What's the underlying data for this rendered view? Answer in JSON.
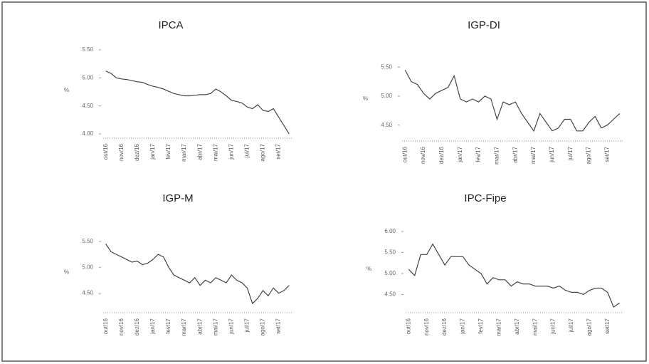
{
  "chart_data": [
    {
      "type": "line",
      "title": "IPCA",
      "y_label": "%",
      "categories": [
        "out/16",
        null,
        null,
        "nov/16",
        null,
        null,
        "dez/16",
        null,
        null,
        "jan/17",
        null,
        null,
        "fev/17",
        null,
        null,
        "mar/17",
        null,
        null,
        "abr/17",
        null,
        null,
        "mai/17",
        null,
        null,
        "jun/17",
        null,
        null,
        "jul/17",
        null,
        null,
        "ago/17",
        null,
        null,
        "set/17",
        null,
        null
      ],
      "series": [
        {
          "color": "#444444",
          "values": [
            5.12,
            5.08,
            5.0,
            4.98,
            4.97,
            4.95,
            4.93,
            4.92,
            4.88,
            4.85,
            4.83,
            4.8,
            4.76,
            4.72,
            4.7,
            4.68,
            4.68,
            4.69,
            4.7,
            4.7,
            4.72,
            4.8,
            4.75,
            4.68,
            4.6,
            4.58,
            4.55,
            4.48,
            4.45,
            4.52,
            4.42,
            4.4,
            4.45,
            4.3,
            4.15,
            4.0
          ]
        }
      ],
      "ylim": [
        3.95,
        5.6
      ],
      "yticks": [
        {
          "value": 5.5,
          "label": "5.50"
        },
        {
          "value": 5,
          "label": "5.00"
        },
        {
          "value": 4.5,
          "label": "4.50"
        },
        {
          "value": 4,
          "label": "4.00"
        }
      ]
    },
    {
      "type": "line",
      "title": "IGP-DI",
      "y_label": "%",
      "categories": [
        "out/16",
        null,
        null,
        "nov/16",
        null,
        null,
        "dez/16",
        null,
        null,
        "jan/17",
        null,
        null,
        "fev/17",
        null,
        null,
        "mar/17",
        null,
        null,
        "abr/17",
        null,
        null,
        "mai/17",
        null,
        null,
        "jun/17",
        null,
        null,
        "jul/17",
        null,
        null,
        "ago/17",
        null,
        null,
        "set/17",
        null,
        null
      ],
      "series": [
        {
          "color": "#444444",
          "values": [
            5.45,
            5.25,
            5.2,
            5.05,
            4.95,
            5.05,
            5.1,
            5.15,
            5.35,
            4.95,
            4.9,
            4.95,
            4.9,
            5.0,
            4.95,
            4.6,
            4.9,
            4.85,
            4.9,
            4.7,
            4.55,
            4.4,
            4.7,
            4.55,
            4.4,
            4.45,
            4.6,
            4.6,
            4.4,
            4.4,
            4.55,
            4.65,
            4.45,
            4.5,
            4.6,
            4.7
          ]
        }
      ],
      "ylim": [
        4.25,
        5.65
      ],
      "yticks": [
        {
          "value": 5.5,
          "label": "5.50"
        },
        {
          "value": 5,
          "label": "5.00"
        },
        {
          "value": 4.5,
          "label": "4.50"
        }
      ]
    },
    {
      "type": "line",
      "title": "IGP-M",
      "y_label": "%",
      "categories": [
        "out/16",
        null,
        null,
        "nov/16",
        null,
        null,
        "dez/16",
        null,
        null,
        "jan/17",
        null,
        null,
        "fev/17",
        null,
        null,
        "mar/17",
        null,
        null,
        "abr/17",
        null,
        null,
        "mai/17",
        null,
        null,
        "jun/17",
        null,
        null,
        "jul/17",
        null,
        null,
        "ago/17",
        null,
        null,
        "set/17",
        null,
        null
      ],
      "series": [
        {
          "color": "#444444",
          "values": [
            5.45,
            5.3,
            5.25,
            5.2,
            5.15,
            5.1,
            5.12,
            5.05,
            5.08,
            5.15,
            5.25,
            5.2,
            5.0,
            4.85,
            4.8,
            4.75,
            4.7,
            4.8,
            4.65,
            4.75,
            4.7,
            4.8,
            4.75,
            4.7,
            4.85,
            4.75,
            4.7,
            4.6,
            4.3,
            4.4,
            4.55,
            4.45,
            4.6,
            4.5,
            4.55,
            4.65
          ]
        }
      ],
      "ylim": [
        4.15,
        5.65
      ],
      "yticks": [
        {
          "value": 5.5,
          "label": "5.50"
        },
        {
          "value": 5,
          "label": "5.00"
        },
        {
          "value": 4.5,
          "label": "4.50"
        }
      ]
    },
    {
      "type": "line",
      "title": "IPC-Fipe",
      "y_label": "%",
      "categories": [
        "out/16",
        null,
        null,
        "nov/16",
        null,
        null,
        "dez/16",
        null,
        null,
        "jan/17",
        null,
        null,
        "fev/17",
        null,
        null,
        "mar/17",
        null,
        null,
        "abr/17",
        null,
        null,
        "mai/17",
        null,
        null,
        "jun/17",
        null,
        null,
        "jul/17",
        null,
        null,
        "ago/17",
        null,
        null,
        "set/17",
        null,
        null
      ],
      "series": [
        {
          "color": "#444444",
          "values": [
            5.1,
            4.95,
            5.45,
            5.45,
            5.7,
            5.45,
            5.2,
            5.4,
            5.4,
            5.4,
            5.2,
            5.1,
            5.0,
            4.75,
            4.9,
            4.85,
            4.85,
            4.7,
            4.8,
            4.75,
            4.75,
            4.7,
            4.7,
            4.7,
            4.65,
            4.7,
            4.6,
            4.55,
            4.55,
            4.5,
            4.6,
            4.65,
            4.65,
            4.55,
            4.2,
            4.3
          ]
        }
      ],
      "ylim": [
        4.1,
        6.1
      ],
      "yticks": [
        {
          "value": 6,
          "label": "6.00"
        },
        {
          "value": 5.5,
          "label": "5.50"
        },
        {
          "value": 5,
          "label": "5.00"
        },
        {
          "value": 4.5,
          "label": "4.50"
        }
      ]
    }
  ]
}
